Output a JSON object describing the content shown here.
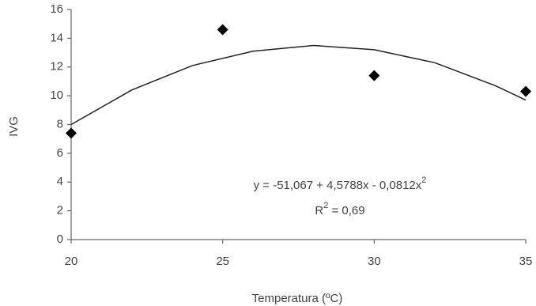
{
  "chart_data": {
    "type": "scatter",
    "x_label": "Temperatura (ºC)",
    "y_label": "IVG",
    "xlim": [
      20,
      35
    ],
    "xticks": [
      20,
      25,
      30,
      35
    ],
    "ylim": [
      0,
      16
    ],
    "yticks": [
      0,
      2,
      4,
      6,
      8,
      10,
      12,
      14,
      16
    ],
    "grid": false,
    "series": [
      {
        "type": "scatter",
        "color": "#000000",
        "x": [
          20,
          25,
          30,
          35
        ],
        "values": [
          7.4,
          14.6,
          11.4,
          10.3
        ]
      },
      {
        "type": "line",
        "color": "#222222",
        "x": [
          20,
          22,
          24,
          26,
          28,
          30,
          32,
          34,
          35
        ],
        "values": [
          8.0,
          10.4,
          12.1,
          13.1,
          13.5,
          13.2,
          12.3,
          10.7,
          9.7
        ]
      }
    ],
    "annotations": [
      [
        "y = -51,067 + 4,5788x - 0,0812x",
        "2"
      ],
      [
        "R",
        "2",
        " = 0,69"
      ]
    ]
  }
}
